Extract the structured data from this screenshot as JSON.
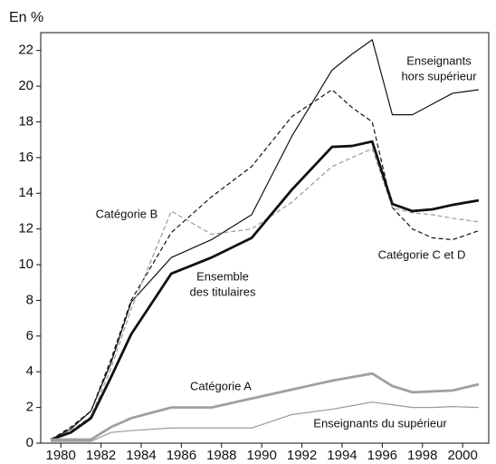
{
  "chart_data": {
    "type": "line",
    "y_label": "En %",
    "x": [
      1979.5,
      1980.5,
      1981.5,
      1982.5,
      1983.5,
      1985.5,
      1987.5,
      1989.5,
      1991.5,
      1993.5,
      1994.5,
      1995.5,
      1996.5,
      1997.5,
      1998.5,
      1999.5,
      2000.8
    ],
    "xlim": [
      1979,
      2001.3
    ],
    "xticks": [
      1980,
      1982,
      1984,
      1986,
      1988,
      1990,
      1992,
      1994,
      1996,
      1998,
      2000
    ],
    "ylim": [
      0,
      23
    ],
    "yticks": [
      0,
      2,
      4,
      6,
      8,
      10,
      12,
      14,
      16,
      18,
      20,
      22
    ],
    "series": [
      {
        "label": [
          "Enseignants",
          "hors supérieur"
        ],
        "color": "#111111",
        "width": 1.2,
        "dash": "none",
        "values": [
          0.2,
          0.8,
          1.8,
          4.5,
          7.9,
          10.4,
          11.4,
          12.8,
          17.2,
          20.9,
          21.8,
          22.6,
          18.4,
          18.4,
          19.0,
          19.6,
          19.8
        ]
      },
      {
        "label": [
          "Catégorie C et D"
        ],
        "color": "#111111",
        "width": 1.2,
        "dash": "5,3",
        "values": [
          0.2,
          0.9,
          1.8,
          4.7,
          8.0,
          11.8,
          13.8,
          15.5,
          18.3,
          19.8,
          18.8,
          18.0,
          13.2,
          12.0,
          11.5,
          11.4,
          11.9
        ]
      },
      {
        "label": [
          "Catégorie B"
        ],
        "color": "#999999",
        "width": 1.2,
        "dash": "5,3",
        "values": [
          0.2,
          0.7,
          1.5,
          4.2,
          7.5,
          13.0,
          11.7,
          12.0,
          13.5,
          15.5,
          16.0,
          16.5,
          13.2,
          12.9,
          12.8,
          12.6,
          12.4
        ]
      },
      {
        "label": [
          "Ensemble",
          "des titulaires"
        ],
        "color": "#111111",
        "width": 2.8,
        "dash": "none",
        "values": [
          0.2,
          0.6,
          1.4,
          3.7,
          6.1,
          9.5,
          10.4,
          11.5,
          14.2,
          16.6,
          16.65,
          16.9,
          13.4,
          13.0,
          13.1,
          13.35,
          13.6
        ]
      },
      {
        "label": [
          "Catégorie A"
        ],
        "color": "#a0a0a0",
        "width": 2.8,
        "dash": "none",
        "values": [
          0.2,
          0.2,
          0.2,
          0.9,
          1.4,
          2.0,
          2.0,
          2.5,
          3.0,
          3.5,
          3.7,
          3.9,
          3.2,
          2.85,
          2.9,
          2.95,
          3.3
        ]
      },
      {
        "label": [
          "Enseignants du supérieur"
        ],
        "color": "#999999",
        "width": 1.2,
        "dash": "none",
        "values": [
          0.1,
          0.1,
          0.1,
          0.6,
          0.7,
          0.85,
          0.85,
          0.85,
          1.6,
          1.9,
          2.1,
          2.3,
          2.15,
          2.0,
          2.0,
          2.05,
          2.0
        ]
      }
    ]
  }
}
